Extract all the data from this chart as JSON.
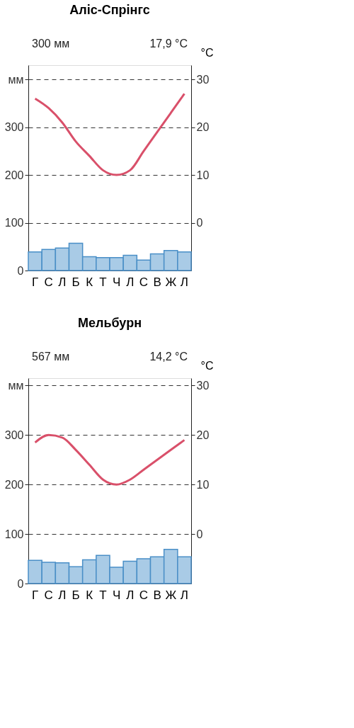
{
  "chart_data": [
    {
      "type": "bar",
      "title": "Аліс-Спрінгс",
      "categories": [
        "Г",
        "С",
        "Л",
        "Б",
        "К",
        "Т",
        "Ч",
        "Л",
        "С",
        "В",
        "Ж",
        "Л"
      ],
      "series": [
        {
          "color": "#a9cbe6",
          "values": [
            39,
            44,
            47,
            57,
            29,
            27,
            27,
            32,
            22,
            35,
            42,
            39
          ]
        },
        {
          "type": "line",
          "axis": "y2",
          "color": "#d9506a",
          "values": [
            26,
            24,
            21,
            17,
            14,
            11,
            10,
            11,
            15,
            19,
            23,
            27
          ]
        }
      ],
      "ylim": [
        0,
        430
      ],
      "yticks": [
        0,
        100,
        200,
        300,
        {
          "value": 400,
          "label": "мм"
        }
      ],
      "y2lim": [
        -10,
        33
      ],
      "y2ticks": [
        0,
        10,
        20,
        30
      ],
      "y2label": "°C",
      "grid": "y",
      "annotations": [
        "300 мм",
        "17,9 °C"
      ]
    },
    {
      "type": "bar",
      "title": "Мельбурн",
      "categories": [
        "Г",
        "С",
        "Л",
        "Б",
        "К",
        "Т",
        "Ч",
        "Л",
        "С",
        "В",
        "Ж",
        "Л"
      ],
      "series": [
        {
          "color": "#a9cbe6",
          "values": [
            47,
            43,
            42,
            34,
            48,
            57,
            33,
            45,
            50,
            54,
            69,
            54
          ]
        },
        {
          "type": "line",
          "axis": "y2",
          "color": "#d9506a",
          "values": [
            18.5,
            20,
            19.5,
            17,
            14,
            11,
            10,
            11,
            13,
            15,
            17,
            19
          ]
        }
      ],
      "ylim": [
        0,
        415
      ],
      "yticks": [
        0,
        100,
        200,
        300,
        {
          "value": 400,
          "label": "мм"
        }
      ],
      "y2lim": [
        -10,
        31.5
      ],
      "y2ticks": [
        0,
        10,
        20,
        30
      ],
      "y2label": "°C",
      "grid": "y",
      "annotations": [
        "567 мм",
        "14,2 °C"
      ]
    }
  ]
}
